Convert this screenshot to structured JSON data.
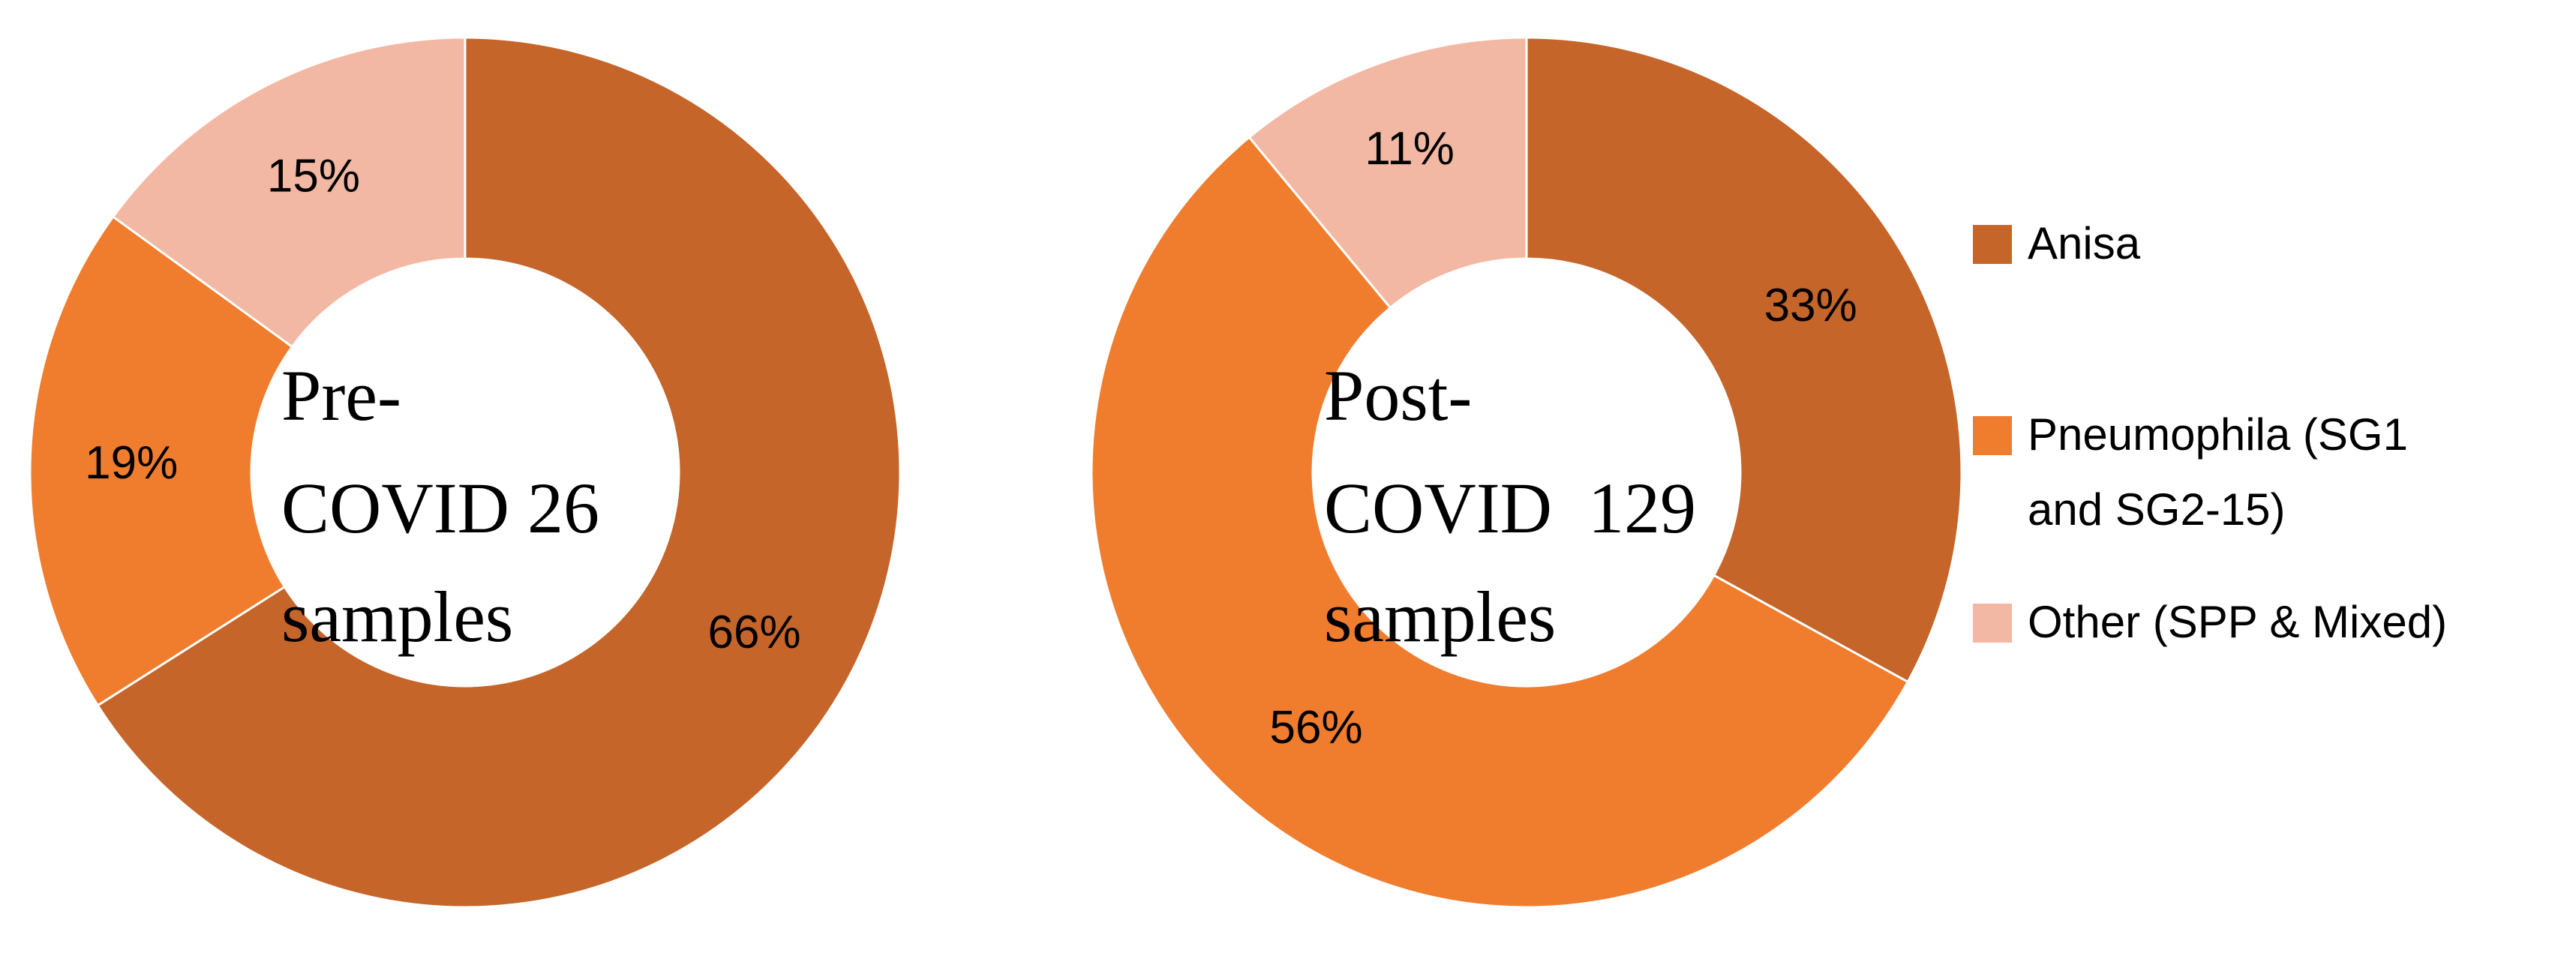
{
  "colors": {
    "anisa": "#c5652a",
    "pneumophila": "#f07c2e",
    "other": "#f3b8a4",
    "center": "#ffffff"
  },
  "chart_data": [
    {
      "type": "pie",
      "variant": "donut",
      "center_label": [
        "Pre-",
        "COVID 26",
        "samples"
      ],
      "categories": [
        "Anisa",
        "Pneumophila (SG1 and SG2-15)",
        "Other (SPP & Mixed)"
      ],
      "values": [
        66,
        19,
        15
      ],
      "labels": [
        "66%",
        "19%",
        "15%"
      ]
    },
    {
      "type": "pie",
      "variant": "donut",
      "center_label": [
        "Post-",
        "COVID  129",
        "samples"
      ],
      "categories": [
        "Anisa",
        "Pneumophila (SG1 and SG2-15)",
        "Other (SPP & Mixed)"
      ],
      "values": [
        33,
        56,
        11
      ],
      "labels": [
        "33%",
        "56%",
        "11%"
      ]
    }
  ],
  "legend": {
    "placement": "right",
    "entries": [
      {
        "lines": [
          "Anisa"
        ],
        "color_key": "anisa"
      },
      {
        "lines": [
          "Pneumophila (SG1",
          "and SG2-15)"
        ],
        "color_key": "pneumophila"
      },
      {
        "lines": [
          "Other (SPP & Mixed)"
        ],
        "color_key": "other"
      }
    ]
  }
}
